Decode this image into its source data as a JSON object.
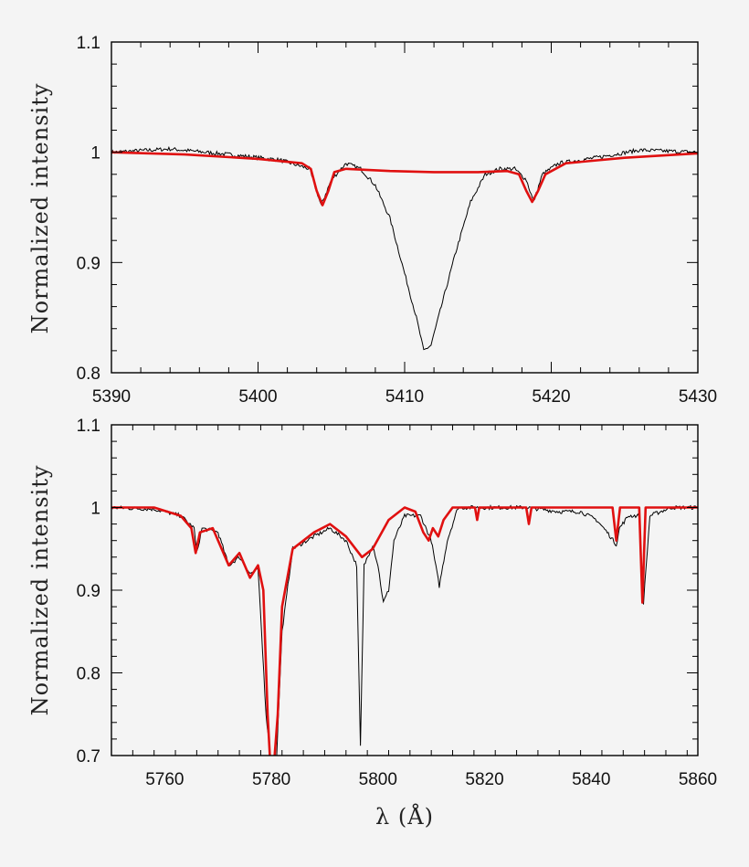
{
  "colors": {
    "observed": "#000000",
    "model": "#e01010",
    "background": "#f4f4f4"
  },
  "chart_data": [
    {
      "type": "line",
      "xlim": [
        5390,
        5430
      ],
      "ylim": [
        0.8,
        1.1
      ],
      "xticks": [
        5390,
        5400,
        5410,
        5420,
        5430
      ],
      "yticks": [
        0.8,
        0.9,
        1,
        1.1
      ],
      "ylabel": "Normalized intensity",
      "xlabel": "",
      "grid": false,
      "series": [
        {
          "role": "observed",
          "color": "#000000",
          "points": [
            [
              5390,
              1.0
            ],
            [
              5394,
              1.003
            ],
            [
              5398,
              0.998
            ],
            [
              5401.5,
              0.993
            ],
            [
              5403.5,
              0.985
            ],
            [
              5404.3,
              0.952
            ],
            [
              5405.0,
              0.975
            ],
            [
              5406.0,
              0.99
            ],
            [
              5407.0,
              0.985
            ],
            [
              5408.0,
              0.97
            ],
            [
              5409.0,
              0.94
            ],
            [
              5410.0,
              0.89
            ],
            [
              5410.8,
              0.85
            ],
            [
              5411.3,
              0.82
            ],
            [
              5411.8,
              0.825
            ],
            [
              5412.5,
              0.86
            ],
            [
              5413.5,
              0.91
            ],
            [
              5414.5,
              0.955
            ],
            [
              5415.5,
              0.98
            ],
            [
              5416.5,
              0.985
            ],
            [
              5417.5,
              0.985
            ],
            [
              5418.3,
              0.975
            ],
            [
              5418.8,
              0.955
            ],
            [
              5419.4,
              0.98
            ],
            [
              5420.5,
              0.99
            ],
            [
              5423,
              0.995
            ],
            [
              5426,
              1.002
            ],
            [
              5430,
              1.0
            ]
          ]
        },
        {
          "role": "model",
          "color": "#e01010",
          "points": [
            [
              5390,
              1.0
            ],
            [
              5395,
              0.998
            ],
            [
              5400,
              0.994
            ],
            [
              5403,
              0.99
            ],
            [
              5403.6,
              0.985
            ],
            [
              5404.0,
              0.965
            ],
            [
              5404.4,
              0.952
            ],
            [
              5404.8,
              0.965
            ],
            [
              5405.2,
              0.982
            ],
            [
              5406,
              0.985
            ],
            [
              5409,
              0.983
            ],
            [
              5412,
              0.982
            ],
            [
              5415,
              0.982
            ],
            [
              5417,
              0.983
            ],
            [
              5417.8,
              0.98
            ],
            [
              5418.3,
              0.965
            ],
            [
              5418.7,
              0.955
            ],
            [
              5419.1,
              0.965
            ],
            [
              5419.6,
              0.98
            ],
            [
              5421,
              0.99
            ],
            [
              5425,
              0.995
            ],
            [
              5430,
              0.999
            ]
          ]
        }
      ]
    },
    {
      "type": "line",
      "xlim": [
        5750,
        5860
      ],
      "ylim": [
        0.7,
        1.1
      ],
      "xticks": [
        5760,
        5780,
        5800,
        5820,
        5840,
        5860
      ],
      "yticks": [
        0.7,
        0.8,
        0.9,
        1,
        1.1
      ],
      "ylabel": "Normalized intensity",
      "xlabel": "λ (Å)",
      "grid": false,
      "series": [
        {
          "role": "observed",
          "color": "#000000",
          "points": [
            [
              5750,
              1.0
            ],
            [
              5758,
              0.998
            ],
            [
              5763,
              0.99
            ],
            [
              5765.5,
              0.975
            ],
            [
              5766,
              0.945
            ],
            [
              5767,
              0.975
            ],
            [
              5770,
              0.97
            ],
            [
              5772,
              0.93
            ],
            [
              5774,
              0.94
            ],
            [
              5776,
              0.92
            ],
            [
              5777.5,
              0.925
            ],
            [
              5779,
              0.75
            ],
            [
              5780,
              0.69
            ],
            [
              5781,
              0.7
            ],
            [
              5782,
              0.85
            ],
            [
              5784,
              0.95
            ],
            [
              5788,
              0.965
            ],
            [
              5791,
              0.975
            ],
            [
              5794,
              0.96
            ],
            [
              5796,
              0.93
            ],
            [
              5796.7,
              0.71
            ],
            [
              5797.4,
              0.93
            ],
            [
              5799,
              0.955
            ],
            [
              5800,
              0.93
            ],
            [
              5801,
              0.885
            ],
            [
              5802,
              0.9
            ],
            [
              5803,
              0.96
            ],
            [
              5805,
              0.99
            ],
            [
              5808,
              0.99
            ],
            [
              5810,
              0.96
            ],
            [
              5811.5,
              0.905
            ],
            [
              5813,
              0.96
            ],
            [
              5815,
              1.0
            ],
            [
              5820,
              1.0
            ],
            [
              5828,
              1.0
            ],
            [
              5834,
              0.995
            ],
            [
              5838,
              0.995
            ],
            [
              5841,
              0.985
            ],
            [
              5843,
              0.97
            ],
            [
              5844.7,
              0.955
            ],
            [
              5845.3,
              0.975
            ],
            [
              5847,
              0.99
            ],
            [
              5849,
              0.99
            ],
            [
              5849.8,
              0.885
            ],
            [
              5851,
              0.99
            ],
            [
              5855,
              1.0
            ],
            [
              5860,
              1.0
            ]
          ]
        },
        {
          "role": "model",
          "color": "#e01010",
          "points": [
            [
              5750,
              1.0
            ],
            [
              5758,
              1.0
            ],
            [
              5763,
              0.99
            ],
            [
              5765,
              0.975
            ],
            [
              5765.8,
              0.945
            ],
            [
              5766.6,
              0.97
            ],
            [
              5769,
              0.975
            ],
            [
              5772,
              0.93
            ],
            [
              5774,
              0.945
            ],
            [
              5776,
              0.915
            ],
            [
              5777.5,
              0.93
            ],
            [
              5778.5,
              0.9
            ],
            [
              5779.3,
              0.75
            ],
            [
              5779.8,
              0.69
            ],
            [
              5780.5,
              0.69
            ],
            [
              5781.2,
              0.75
            ],
            [
              5782,
              0.88
            ],
            [
              5784,
              0.95
            ],
            [
              5788,
              0.97
            ],
            [
              5791,
              0.98
            ],
            [
              5794,
              0.965
            ],
            [
              5797,
              0.94
            ],
            [
              5799,
              0.95
            ],
            [
              5802,
              0.985
            ],
            [
              5805,
              1.0
            ],
            [
              5807,
              0.995
            ],
            [
              5808.5,
              0.97
            ],
            [
              5809.5,
              0.96
            ],
            [
              5810.3,
              0.975
            ],
            [
              5811.3,
              0.965
            ],
            [
              5812.3,
              0.985
            ],
            [
              5814,
              1.0
            ],
            [
              5818.2,
              1.0
            ],
            [
              5818.6,
              0.985
            ],
            [
              5819,
              1.0
            ],
            [
              5827.8,
              1.0
            ],
            [
              5828.3,
              0.98
            ],
            [
              5828.8,
              1.0
            ],
            [
              5844,
              1.0
            ],
            [
              5844.7,
              0.96
            ],
            [
              5845.4,
              1.0
            ],
            [
              5849,
              1.0
            ],
            [
              5849.6,
              0.885
            ],
            [
              5850.2,
              1.0
            ],
            [
              5860,
              1.0
            ]
          ]
        }
      ]
    }
  ]
}
